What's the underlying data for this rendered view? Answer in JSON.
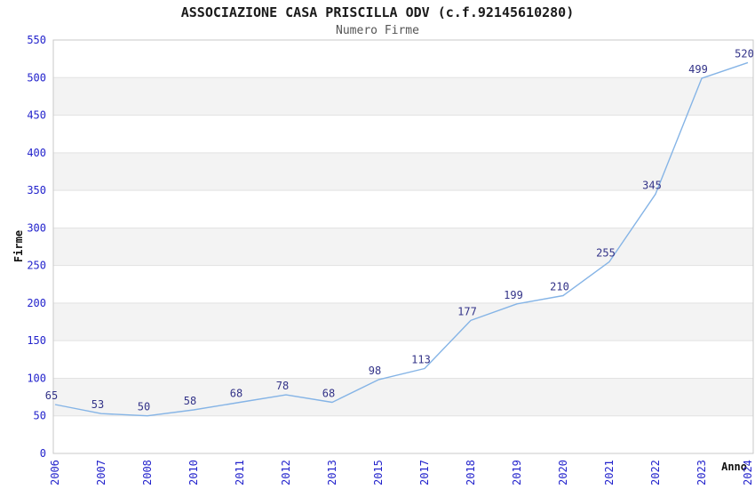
{
  "chart_data": {
    "type": "line",
    "title": "ASSOCIAZIONE CASA PRISCILLA ODV (c.f.92145610280)",
    "subtitle": "Numero Firme",
    "xlabel": "Anno",
    "ylabel": "Firme",
    "categories": [
      "2006",
      "2007",
      "2008",
      "2010",
      "2011",
      "2012",
      "2013",
      "2015",
      "2017",
      "2018",
      "2019",
      "2020",
      "2021",
      "2022",
      "2023",
      "2024"
    ],
    "values": [
      65,
      53,
      50,
      58,
      68,
      78,
      68,
      98,
      113,
      177,
      199,
      210,
      255,
      345,
      499,
      520
    ],
    "ylim": [
      0,
      550
    ],
    "ytick_step": 50,
    "legend": "none",
    "grid": "horizontal, alternating shaded bands every 50 units",
    "colors": {
      "line": "#85b4e6",
      "tick_label": "#2323cc",
      "data_label": "#333388",
      "band_fill": "#f3f3f3",
      "gridline": "#e2e2e2",
      "plot_border": "#c9c9c9",
      "title": "#1a1a1a",
      "subtitle": "#555555",
      "axis_title": "#111111"
    }
  }
}
